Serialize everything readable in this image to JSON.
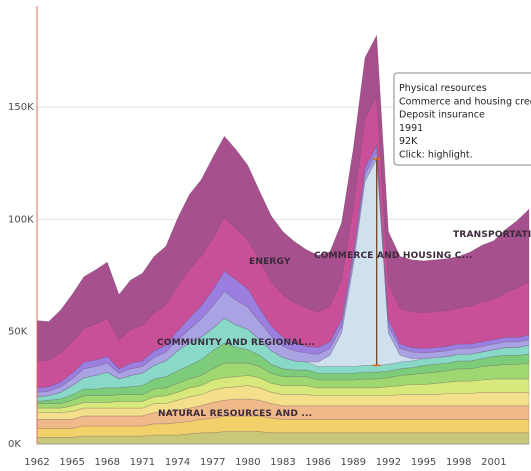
{
  "chart_data": {
    "type": "area",
    "stacked": true,
    "xlim": [
      1962,
      2004
    ],
    "ylim": [
      0,
      195
    ],
    "x": [
      1962,
      1963,
      1964,
      1965,
      1966,
      1967,
      1968,
      1969,
      1970,
      1971,
      1972,
      1973,
      1974,
      1975,
      1976,
      1977,
      1978,
      1979,
      1980,
      1981,
      1982,
      1983,
      1984,
      1985,
      1986,
      1987,
      1988,
      1989,
      1990,
      1991,
      1992,
      1993,
      1994,
      1995,
      1996,
      1997,
      1998,
      1999,
      2000,
      2001,
      2002,
      2003,
      2004
    ],
    "x_ticks": [
      "1962",
      "1965",
      "1968",
      "1971",
      "1974",
      "1977",
      "1980",
      "1983",
      "1986",
      "1989",
      "1992",
      "1995",
      "1998",
      "2001"
    ],
    "y_ticks": [
      {
        "value": 0,
        "label": "0K"
      },
      {
        "value": 50,
        "label": "50K"
      },
      {
        "value": 100,
        "label": "100K"
      },
      {
        "value": 150,
        "label": "150K"
      }
    ],
    "grid": "horizontal",
    "series": [
      {
        "color": "#c8c878",
        "values": [
          3,
          3,
          3,
          3,
          3.5,
          3.5,
          3.5,
          3.5,
          3.5,
          3.5,
          4,
          4,
          4,
          4.5,
          5,
          5,
          5.5,
          5.5,
          5.5,
          5.5,
          5,
          5,
          5,
          5,
          5,
          5,
          5,
          5,
          5,
          5,
          5,
          5,
          5,
          5,
          5,
          5,
          5,
          5,
          5,
          5,
          5,
          5,
          5
        ]
      },
      {
        "color": "#f2d16a",
        "values": [
          4,
          4,
          4,
          4,
          4.5,
          4.5,
          4.5,
          4.5,
          4.5,
          4.5,
          5,
          5,
          5.5,
          5.5,
          6,
          6.5,
          7,
          7,
          7,
          7,
          6.5,
          6,
          6,
          6,
          6,
          6,
          6,
          6,
          6,
          6,
          6,
          6,
          6,
          6,
          6,
          6,
          6,
          6,
          6,
          6,
          6,
          6,
          6
        ]
      },
      {
        "color": "#efb98a",
        "values": [
          4,
          4,
          4,
          4,
          4.5,
          4.5,
          4.5,
          4.5,
          4.5,
          4.5,
          5,
          5,
          5.5,
          6,
          6,
          7,
          7,
          7.5,
          7.5,
          7,
          6.5,
          6,
          6,
          6,
          6,
          6,
          6,
          6,
          6,
          6,
          6,
          6,
          6,
          6,
          6,
          6,
          6,
          6,
          6,
          6,
          6,
          6,
          6
        ]
      },
      {
        "color": "#f4e08a",
        "values": [
          3,
          3,
          3,
          3.5,
          3.5,
          3.5,
          3.5,
          3.5,
          3.5,
          3.5,
          4,
          4,
          4.5,
          5,
          5,
          5.5,
          5.5,
          5.5,
          6,
          5.5,
          5,
          5,
          5,
          5,
          4.5,
          4.5,
          4.5,
          4.5,
          4.5,
          4.5,
          4.5,
          5,
          5,
          5,
          5,
          5.5,
          5.5,
          5.5,
          6,
          6,
          6,
          6,
          6
        ]
      },
      {
        "color": "#d9e87a",
        "values": [
          2,
          2,
          2,
          2.5,
          2.5,
          2.5,
          2.5,
          3,
          3,
          3,
          3,
          3.5,
          3.5,
          4,
          4,
          4.5,
          4.5,
          4.5,
          4.5,
          4.5,
          4,
          4,
          4,
          4,
          3.5,
          3.5,
          3.5,
          3.5,
          3.5,
          3.5,
          4,
          4,
          4.5,
          4.5,
          5,
          5,
          5.5,
          5.5,
          5.5,
          6,
          6,
          6,
          6
        ]
      },
      {
        "color": "#9fd870",
        "values": [
          2,
          2,
          2,
          2.5,
          3,
          3,
          3,
          3,
          3,
          3,
          3.5,
          3.5,
          4,
          4,
          4.5,
          5,
          6.5,
          6,
          5.5,
          5,
          4.5,
          4,
          4,
          4,
          3.5,
          3.5,
          3.5,
          3.5,
          4,
          4,
          4,
          4.5,
          4.5,
          5,
          5,
          5,
          5.5,
          5.5,
          6,
          6,
          6.5,
          6.5,
          7
        ]
      },
      {
        "color": "#7dcc7a",
        "values": [
          1,
          1.5,
          2,
          2.5,
          3,
          3,
          3.5,
          3,
          3.5,
          4,
          4.5,
          5,
          5.5,
          6,
          7,
          8,
          9,
          7,
          6,
          5,
          4,
          3.5,
          3,
          3,
          3,
          3,
          3,
          3,
          3,
          3,
          3,
          3,
          3,
          3.5,
          3.5,
          3.5,
          3.5,
          3.5,
          3.5,
          4,
          4,
          4,
          4
        ]
      },
      {
        "color": "#88d9c8",
        "values": [
          2,
          2,
          3,
          4,
          5,
          6,
          7,
          4,
          5,
          5.5,
          6,
          7,
          9,
          10,
          10,
          10,
          11,
          10,
          9,
          7,
          6,
          5,
          4,
          3.5,
          3,
          3,
          3,
          3,
          3,
          3,
          3,
          3,
          3,
          3,
          3,
          3,
          3,
          3,
          3,
          3,
          3.5,
          3.5,
          4
        ]
      },
      {
        "color": "#cfe0ee",
        "values": [
          0,
          0,
          0,
          0,
          0,
          0,
          0,
          0,
          0,
          0,
          0,
          0,
          0,
          0,
          0,
          0,
          0,
          0,
          0,
          0,
          0,
          0,
          0,
          0,
          2,
          5,
          15,
          45,
          82,
          92,
          14,
          3,
          1,
          0,
          0,
          0,
          0,
          0,
          0,
          0,
          0,
          0,
          0
        ]
      },
      {
        "color": "#a9a2e3",
        "values": [
          2,
          2,
          2.5,
          3,
          4,
          4,
          4,
          2.5,
          3,
          3,
          3.5,
          4,
          5,
          6,
          8,
          10,
          12,
          11,
          10,
          8,
          6.5,
          5,
          4.5,
          4,
          3.5,
          3,
          3,
          3,
          3,
          3,
          3,
          3,
          3,
          2.5,
          2.5,
          2.5,
          2.5,
          2.5,
          2.5,
          2.5,
          2.5,
          2.5,
          2.5
        ]
      },
      {
        "color": "#9a7fe0",
        "values": [
          2,
          2,
          2,
          2.5,
          3,
          3,
          3,
          2,
          2.5,
          2.5,
          3,
          3,
          4,
          5,
          6,
          7,
          9,
          9,
          8,
          6,
          4.5,
          4,
          3.5,
          3,
          3,
          3,
          3,
          3,
          3,
          3,
          3,
          2,
          2,
          2,
          2,
          2,
          2,
          2,
          2,
          2,
          2,
          2,
          2
        ]
      },
      {
        "color": "#c94f98",
        "values": [
          12,
          12,
          13,
          14,
          15,
          16,
          17,
          13,
          15,
          16,
          17,
          18,
          20,
          22,
          22,
          23,
          24,
          23,
          22,
          21,
          20,
          19,
          18,
          17,
          16,
          16,
          18,
          20,
          22,
          22,
          16,
          16,
          16,
          16,
          16,
          16,
          16,
          17,
          18,
          18,
          20,
          22,
          24
        ]
      },
      {
        "color": "#a6508e",
        "values": [
          18,
          17,
          19,
          21,
          23,
          24,
          25,
          20,
          22,
          23,
          25,
          26,
          30,
          33,
          34,
          36,
          36,
          35,
          33,
          31,
          29,
          28,
          27,
          26,
          25,
          24,
          25,
          26,
          27,
          27,
          23,
          23,
          23,
          23,
          23,
          23,
          23,
          24,
          25,
          26,
          28,
          30,
          32
        ]
      }
    ],
    "annotations": [
      "NATURAL RESOURCES AND ...",
      "COMMUNITY AND REGIONAL...",
      "ENERGY",
      "COMMERCE AND HOUSING C...",
      "TRANSPORTATI"
    ],
    "tooltip": {
      "lines": [
        "Physical resources",
        "Commerce and housing credit",
        "Deposit insurance",
        "1991",
        "92K",
        "Click: highlight."
      ],
      "year": 1991,
      "value": 92,
      "series_index": 8
    }
  }
}
